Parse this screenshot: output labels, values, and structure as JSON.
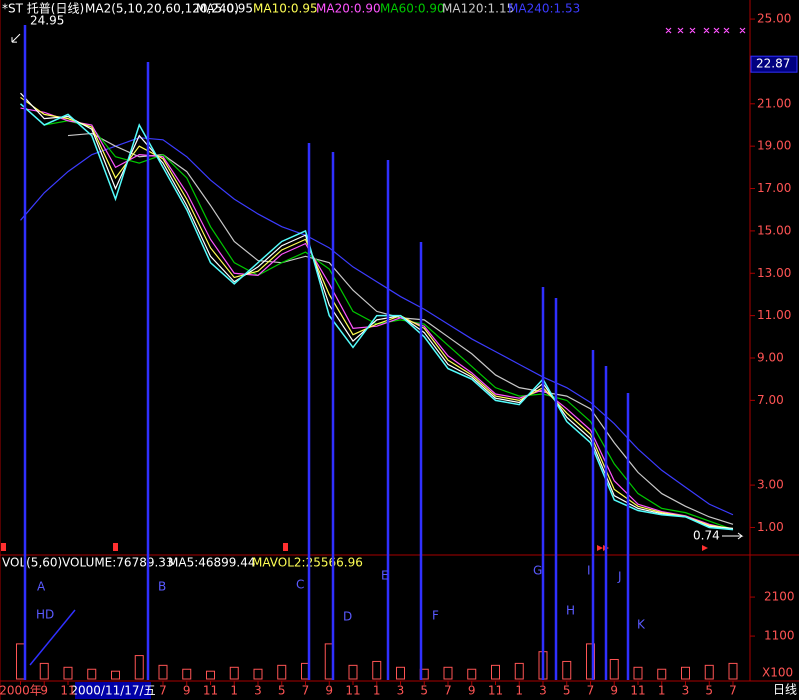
{
  "chart_data": [
    {
      "type": "line",
      "title": "*ST 托普(日线)",
      "subtitle": "MA2(5,10,20,60,120,240)",
      "categories": [
        "2000年",
        "9",
        "11",
        null,
        null,
        null,
        "7",
        "9",
        "11",
        "1",
        "3",
        "5",
        "7",
        "9",
        "11",
        "1",
        "3",
        "5",
        "7",
        "9",
        "11",
        "1",
        "3",
        "5",
        "7",
        "9",
        "11",
        "1",
        "3",
        "5",
        "7"
      ],
      "values": [
        21,
        20,
        20.5,
        19.5,
        16.5,
        20,
        18,
        16,
        13.5,
        12.5,
        13.5,
        14.5,
        15,
        11,
        9.5,
        11,
        11,
        10,
        8.5,
        8,
        7,
        6.8,
        8,
        6,
        5,
        2.3,
        1.8,
        1.6,
        1.5,
        1.0,
        0.9
      ],
      "color": "#54fcfc",
      "series": [
        {
          "name": "MA5:0.95",
          "color": "#ffffff",
          "values": [
            21.5,
            20.3,
            20.4,
            19.8,
            17,
            19.5,
            18.2,
            16.2,
            13.8,
            12.6,
            13.3,
            14.3,
            14.8,
            11.5,
            9.8,
            10.8,
            11,
            10.2,
            8.7,
            8.1,
            7.1,
            6.9,
            7.8,
            6.2,
            5.2,
            2.5,
            1.9,
            1.65,
            1.5,
            1.05,
            0.95
          ]
        },
        {
          "name": "MA10:0.95",
          "color": "#ffff54",
          "values": [
            21.3,
            20.5,
            20.3,
            19.9,
            17.5,
            19,
            18.4,
            16.5,
            14.2,
            12.8,
            13.1,
            14.1,
            14.6,
            12,
            10.1,
            10.6,
            11,
            10.4,
            8.9,
            8.2,
            7.2,
            7,
            7.6,
            6.4,
            5.4,
            2.8,
            2,
            1.7,
            1.52,
            1.1,
            0.95
          ]
        },
        {
          "name": "MA20:0.90",
          "color": "#ff54ff",
          "values": [
            20.8,
            20.6,
            20.2,
            20,
            18,
            18.6,
            18.5,
            16.8,
            14.6,
            13,
            12.9,
            13.9,
            14.4,
            12.5,
            10.4,
            10.5,
            10.9,
            10.5,
            9.1,
            8.3,
            7.3,
            7.1,
            7.5,
            6.6,
            5.6,
            3.2,
            2.1,
            1.75,
            1.55,
            1.15,
            0.9
          ]
        },
        {
          "name": "MA60:0.90",
          "color": "#00c800",
          "values": [
            null,
            20,
            20.2,
            19.9,
            18.5,
            18.2,
            18.6,
            17.5,
            15.2,
            13.5,
            12.9,
            13.5,
            14,
            13.2,
            11.2,
            10.6,
            10.8,
            10.6,
            9.6,
            8.6,
            7.6,
            7.2,
            7.3,
            7,
            6,
            4,
            2.6,
            1.9,
            1.7,
            1.3,
            0.9
          ]
        },
        {
          "name": "MA120:1.15",
          "color": "#c8c8c8",
          "values": [
            null,
            null,
            19.5,
            19.6,
            19,
            18.5,
            18.6,
            17.8,
            16.2,
            14.5,
            13.6,
            13.5,
            13.8,
            13.5,
            12.2,
            11.2,
            10.9,
            10.8,
            10,
            9.2,
            8.2,
            7.6,
            7.4,
            7.2,
            6.6,
            5,
            3.6,
            2.6,
            2,
            1.5,
            1.15
          ]
        },
        {
          "name": "MA240:1.53",
          "color": "#3c3cff",
          "values": [
            15.5,
            16.8,
            17.8,
            18.6,
            19,
            19.4,
            19.3,
            18.5,
            17.4,
            16.5,
            15.8,
            15.2,
            14.8,
            14.2,
            13.3,
            12.6,
            11.9,
            11.3,
            10.6,
            9.9,
            9.3,
            8.7,
            8.1,
            7.6,
            6.9,
            5.9,
            4.7,
            3.7,
            2.9,
            2.1,
            1.6
          ]
        }
      ],
      "ylim": [
        -0.3,
        25.9
      ],
      "yticks": [
        {
          "value": 25,
          "label": "25.00"
        },
        {
          "value": 21,
          "label": "21.00"
        },
        {
          "value": 19,
          "label": "19.00"
        },
        {
          "value": 17,
          "label": "17.00"
        },
        {
          "value": 15,
          "label": "15.00"
        },
        {
          "value": 13,
          "label": "13.00"
        },
        {
          "value": 11,
          "label": "11.00"
        },
        {
          "value": 9,
          "label": "9.00"
        },
        {
          "value": 7,
          "label": "7.00"
        },
        {
          "value": 3,
          "label": "3.00"
        },
        {
          "value": 1,
          "label": "1.00"
        }
      ],
      "grid": false,
      "annotations": {
        "high": 24.95,
        "low": 0.74,
        "last": 22.87
      },
      "cursor_date": "2000/11/17/五",
      "markers": [
        "A",
        "B",
        "C",
        "D",
        "E",
        "F",
        "G",
        "H",
        "I",
        "J",
        "K"
      ],
      "note": "HD"
    },
    {
      "type": "bar",
      "legend": [
        {
          "name": "VOL(5,60)",
          "color": "#ffffff"
        },
        {
          "name": "VOLUME:76789.33",
          "color": "#ffffff"
        },
        {
          "name": "MA5:46899.44",
          "color": "#ffffff"
        },
        {
          "name": "MAVOL2:25566.96",
          "color": "#ffff54"
        }
      ],
      "values": [
        900,
        400,
        300,
        250,
        200,
        600,
        350,
        250,
        200,
        300,
        250,
        350,
        400,
        900,
        350,
        450,
        300,
        250,
        300,
        250,
        350,
        400,
        700,
        450,
        900,
        500,
        300,
        250,
        300,
        350,
        400
      ],
      "color": "#ff5454",
      "ylim": [
        0,
        3050
      ],
      "yticks": [
        1100,
        2100
      ],
      "unit": "X100",
      "period": "日线"
    }
  ]
}
